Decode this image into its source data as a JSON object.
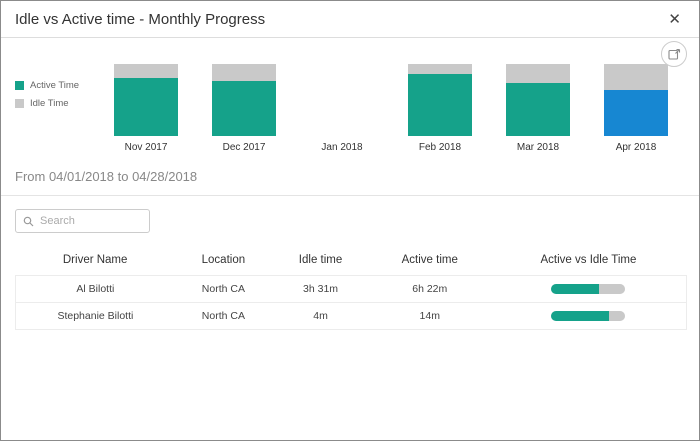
{
  "modal": {
    "title": "Idle vs Active time - Monthly Progress",
    "close_glyph": "✕"
  },
  "colors": {
    "active": "#15a28a",
    "idle": "#c9c9c9",
    "highlight": "#1787d2",
    "idle_text": "#e8743b",
    "active_text": "#12a28c"
  },
  "icons": {
    "export": "export-chart-icon",
    "search": "search-icon",
    "close": "close-icon"
  },
  "chart_data": {
    "type": "bar",
    "stacked": true,
    "categories": [
      "Nov 2017",
      "Dec 2017",
      "Jan 2018",
      "Feb 2018",
      "Mar 2018",
      "Apr 2018"
    ],
    "series": [
      {
        "name": "Active Time",
        "color": "#15a28a",
        "values": [
          81,
          77,
          0,
          86,
          74,
          64
        ]
      },
      {
        "name": "Idle Time",
        "color": "#c9c9c9",
        "values": [
          19,
          23,
          0,
          14,
          26,
          36
        ]
      }
    ],
    "highlighted_category": "Apr 2018",
    "highlight_color": "#1787d2",
    "ylim": [
      0,
      100
    ],
    "legend_position": "left",
    "grid": false
  },
  "filters": {
    "date_range_label": "From 04/01/2018 to 04/28/2018",
    "search_placeholder": "Search"
  },
  "table": {
    "columns": [
      "Driver Name",
      "Location",
      "Idle time",
      "Active time",
      "Active vs Idle Time"
    ],
    "rows": [
      {
        "driver": "Al Bilotti",
        "location": "North CA",
        "idle": "3h 31m",
        "active": "6h 22m",
        "active_pct": 64,
        "idle_pct": 36
      },
      {
        "driver": "Stephanie Bilotti",
        "location": "North CA",
        "idle": "4m",
        "active": "14m",
        "active_pct": 78,
        "idle_pct": 22
      }
    ]
  }
}
